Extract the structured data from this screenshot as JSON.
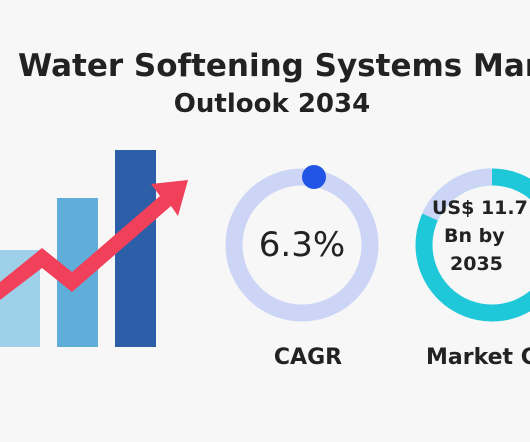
{
  "header": {
    "title": "Water Softening Systems Market",
    "subtitle": "Outlook 2034"
  },
  "stats": [
    {
      "value_lines": [
        "6.3%"
      ],
      "label": "CAGR"
    },
    {
      "value_lines": [
        "US$ 11.7",
        "Bn by",
        "2035"
      ],
      "label": "Market Gr"
    }
  ]
}
